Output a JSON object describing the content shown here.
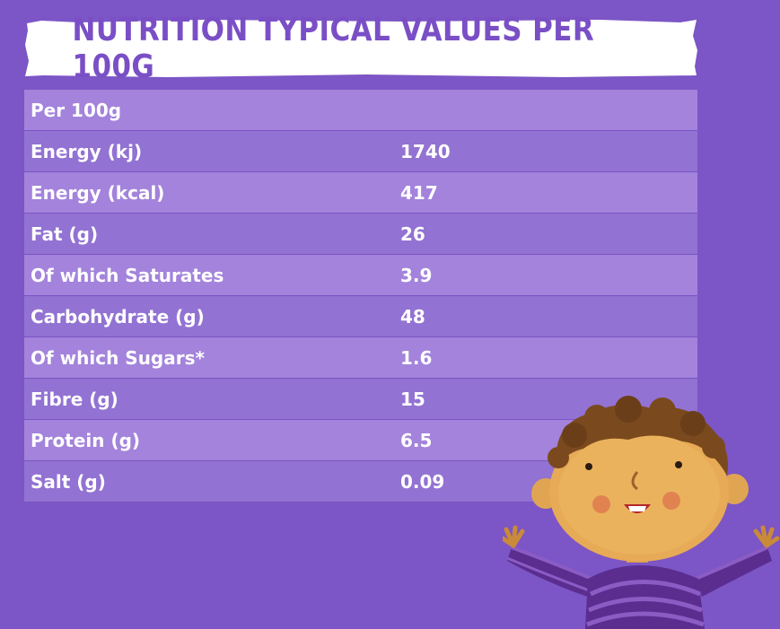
{
  "banner": {
    "title": "NUTRITION TYPICAL VALUES PER 100G"
  },
  "table": {
    "header": "Per 100g",
    "rows": [
      {
        "label": "Energy (kj)",
        "value": "1740"
      },
      {
        "label": "Energy (kcal)",
        "value": "417"
      },
      {
        "label": "Fat (g)",
        "value": "26"
      },
      {
        "label": "Of which Saturates",
        "value": "3.9"
      },
      {
        "label": "Carbohydrate (g)",
        "value": "48"
      },
      {
        "label": "Of which Sugars*",
        "value": "1.6"
      },
      {
        "label": "Fibre (g)",
        "value": "15"
      },
      {
        "label": "Protein (g)",
        "value": "6.5"
      },
      {
        "label": "Salt (g)",
        "value": "0.09"
      }
    ]
  },
  "colors": {
    "background": "#7c55c6",
    "banner_text": "#7a4fc6",
    "row_light": "#a383db",
    "row_dark": "#9272d2"
  }
}
